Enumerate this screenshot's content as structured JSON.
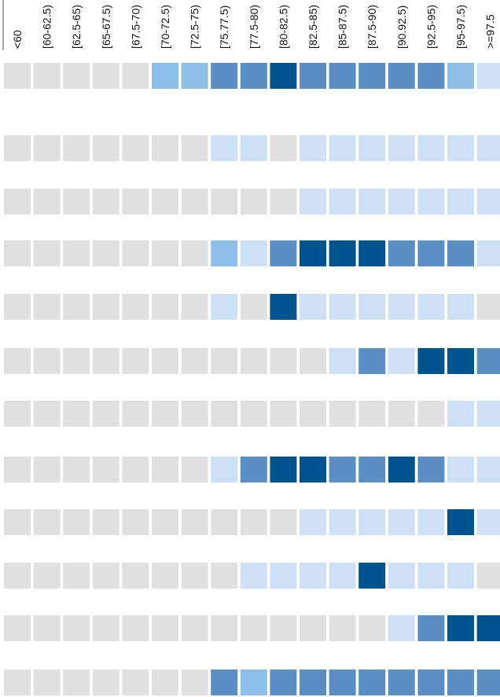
{
  "chart_data": {
    "type": "heatmap",
    "categories": [
      "<60",
      "[60-62.5)",
      "[62.5-65)",
      "[65-67.5)",
      "[67.5-70)",
      "[70-72.5)",
      "[72.5-75)",
      "[75.77.5)",
      "[77.5-80)",
      "[80-82.5)",
      "[82.5-85)",
      "[85-87.5)",
      "[87.5-90)",
      "[90.92.5)",
      "[92.5-95)",
      "[95-97.5)",
      ">=97.5"
    ],
    "colors": [
      "#e0e0e0",
      "#cde0f5",
      "#8dbfe8",
      "#5b8fc4",
      "#00548e"
    ],
    "rows": [
      [
        0,
        0,
        0,
        0,
        0,
        2,
        2,
        3,
        3,
        4,
        3,
        3,
        3,
        3,
        3,
        2,
        1
      ],
      [
        0,
        0,
        0,
        0,
        0,
        0,
        0,
        1,
        1,
        0,
        1,
        1,
        1,
        1,
        1,
        1,
        1
      ],
      [
        0,
        0,
        0,
        0,
        0,
        0,
        0,
        0,
        0,
        0,
        1,
        1,
        1,
        1,
        1,
        1,
        1
      ],
      [
        0,
        0,
        0,
        0,
        0,
        0,
        0,
        2,
        1,
        3,
        4,
        4,
        4,
        3,
        3,
        3,
        1
      ],
      [
        0,
        0,
        0,
        0,
        0,
        0,
        0,
        1,
        0,
        4,
        1,
        1,
        1,
        1,
        1,
        1,
        0
      ],
      [
        0,
        0,
        0,
        0,
        0,
        0,
        0,
        0,
        0,
        0,
        0,
        1,
        3,
        1,
        4,
        4,
        3
      ],
      [
        0,
        0,
        0,
        0,
        0,
        0,
        0,
        0,
        0,
        0,
        0,
        0,
        0,
        0,
        0,
        1,
        1
      ],
      [
        0,
        0,
        0,
        0,
        0,
        0,
        0,
        1,
        3,
        4,
        4,
        3,
        3,
        4,
        3,
        1,
        1
      ],
      [
        0,
        0,
        0,
        0,
        0,
        0,
        0,
        0,
        0,
        0,
        1,
        1,
        1,
        1,
        1,
        4,
        1
      ],
      [
        0,
        0,
        0,
        0,
        0,
        0,
        0,
        0,
        1,
        1,
        1,
        1,
        4,
        1,
        1,
        1,
        0
      ],
      [
        0,
        0,
        0,
        0,
        0,
        0,
        0,
        0,
        0,
        0,
        0,
        0,
        0,
        1,
        3,
        4,
        4
      ],
      [
        0,
        0,
        0,
        0,
        0,
        0,
        0,
        3,
        2,
        3,
        3,
        3,
        3,
        3,
        3,
        3,
        3
      ]
    ]
  }
}
